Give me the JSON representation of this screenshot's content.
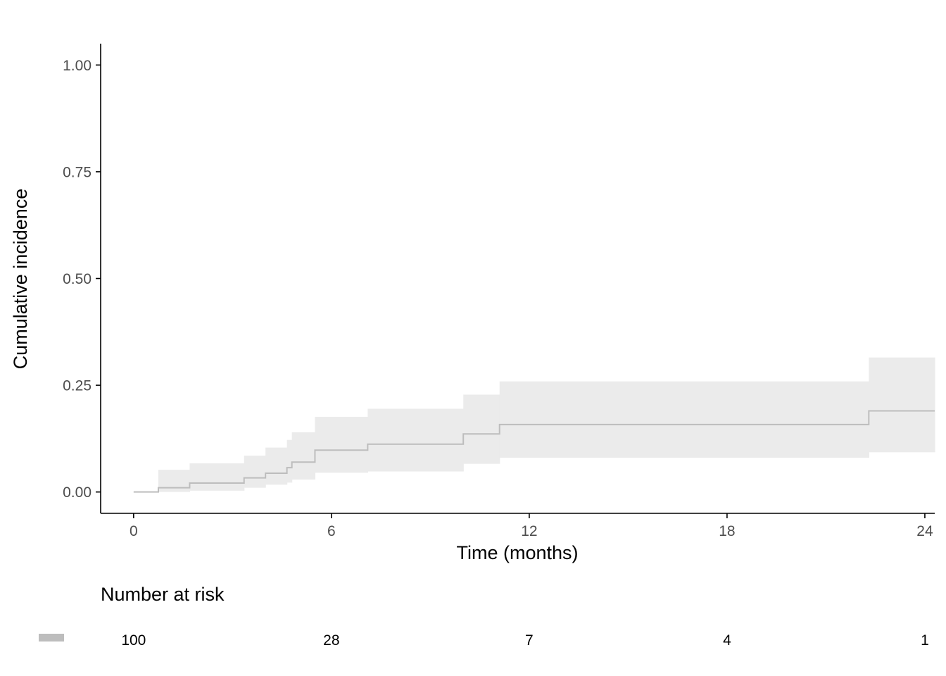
{
  "chart_data": {
    "type": "line",
    "subtype": "step",
    "xlabel": "Time (months)",
    "ylabel": "Cumulative incidence",
    "xlim": [
      -1,
      24.3
    ],
    "ylim": [
      -0.05,
      1.05
    ],
    "x_ticks": [
      0,
      6,
      12,
      18,
      24
    ],
    "y_ticks": [
      0,
      0.25,
      0.5,
      0.75,
      1.0
    ],
    "y_tick_labels": [
      "0.00",
      "0.25",
      "0.50",
      "0.75",
      "1.00"
    ],
    "grid": false,
    "series": [
      {
        "color": "#bdbdbd",
        "ci_color": "#ebebeb",
        "steps": [
          {
            "x": 0,
            "y": 0,
            "lo": 0,
            "hi": 0
          },
          {
            "x": 0.75,
            "y": 0.01,
            "lo": 0,
            "hi": 0.052
          },
          {
            "x": 1.7,
            "y": 0.021,
            "lo": 0.003,
            "hi": 0.067
          },
          {
            "x": 3.35,
            "y": 0.033,
            "lo": 0.01,
            "hi": 0.085
          },
          {
            "x": 4.0,
            "y": 0.044,
            "lo": 0.017,
            "hi": 0.104
          },
          {
            "x": 4.65,
            "y": 0.057,
            "lo": 0.022,
            "hi": 0.122
          },
          {
            "x": 4.8,
            "y": 0.07,
            "lo": 0.029,
            "hi": 0.14
          },
          {
            "x": 5.5,
            "y": 0.098,
            "lo": 0.045,
            "hi": 0.176
          },
          {
            "x": 7.1,
            "y": 0.112,
            "lo": 0.048,
            "hi": 0.195
          },
          {
            "x": 10.0,
            "y": 0.136,
            "lo": 0.066,
            "hi": 0.228
          },
          {
            "x": 11.1,
            "y": 0.158,
            "lo": 0.08,
            "hi": 0.259
          },
          {
            "x": 22.3,
            "y": 0.19,
            "lo": 0.093,
            "hi": 0.315
          }
        ],
        "end_x": 24.3
      }
    ],
    "risk_table": {
      "title": "Number at risk",
      "times": [
        0,
        6,
        12,
        18,
        24
      ],
      "values": [
        "100",
        "28",
        "7",
        "4",
        "1"
      ]
    }
  }
}
